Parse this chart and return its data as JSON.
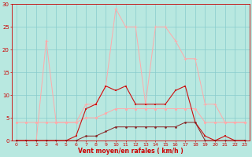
{
  "x": [
    0,
    1,
    2,
    3,
    4,
    5,
    6,
    7,
    8,
    9,
    10,
    11,
    12,
    13,
    14,
    15,
    16,
    17,
    18,
    19,
    20,
    21,
    22,
    23
  ],
  "line_rafales_y": [
    0,
    0,
    0,
    22,
    4,
    4,
    4,
    8,
    8,
    12,
    29,
    25,
    25,
    8,
    25,
    25,
    22,
    18,
    18,
    8,
    8,
    4,
    4,
    4
  ],
  "line_avg_y": [
    4,
    4,
    4,
    4,
    4,
    4,
    4,
    5,
    5,
    6,
    7,
    7,
    7,
    7,
    7,
    7,
    7,
    7,
    7,
    4,
    4,
    4,
    4,
    4
  ],
  "line_dark1_y": [
    0,
    0,
    0,
    0,
    0,
    0,
    1,
    7,
    8,
    12,
    11,
    12,
    8,
    8,
    8,
    8,
    11,
    12,
    4,
    1,
    0,
    1,
    0,
    0
  ],
  "line_dark2_y": [
    0,
    0,
    0,
    0,
    0,
    0,
    0,
    1,
    1,
    2,
    3,
    3,
    3,
    3,
    3,
    3,
    3,
    4,
    4,
    0,
    0,
    0,
    0,
    0
  ],
  "xlabel": "Vent moyen/en rafales ( km/h )",
  "ylim": [
    0,
    30
  ],
  "xlim": [
    -0.5,
    23.5
  ],
  "yticks": [
    0,
    5,
    10,
    15,
    20,
    25,
    30
  ],
  "xticks": [
    0,
    1,
    2,
    3,
    4,
    5,
    6,
    7,
    8,
    9,
    10,
    11,
    12,
    13,
    14,
    15,
    16,
    17,
    18,
    19,
    20,
    21,
    22,
    23
  ],
  "bg_color": "#b8e8e0",
  "grid_color": "#88cccc",
  "line_rafales_color": "#ffaaaa",
  "line_avg_color": "#ffaaaa",
  "line_dark1_color": "#cc1111",
  "line_dark2_color": "#882222",
  "tick_color": "#cc0000",
  "label_color": "#cc0000",
  "spine_color": "#cc0000"
}
